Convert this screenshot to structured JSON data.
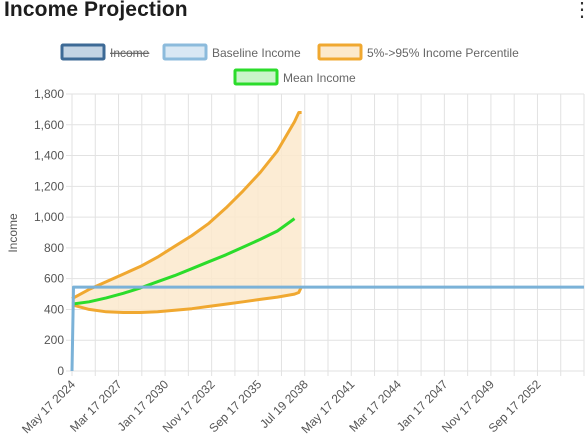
{
  "card": {
    "title": "Income Projection",
    "menu_icon": "more-vertical-icon"
  },
  "chart_data": {
    "type": "line",
    "title": "",
    "ylabel": "Income",
    "xlabel": "",
    "ylim": [
      0,
      1800
    ],
    "y_ticks": [
      0,
      200,
      400,
      600,
      800,
      "1,000",
      "1,200",
      "1,400",
      "1,600",
      "1,800"
    ],
    "x_tick_labels": [
      "May 17 2024",
      "Mar 17 2027",
      "Jan 17 2030",
      "Nov 17 2032",
      "Sep 17 2035",
      "Jul 19 2038",
      "May 17 2041",
      "Mar 17 2044",
      "Jan 17 2047",
      "Nov 17 2049",
      "Sep 17 2052"
    ],
    "x_range": [
      "2024-05-17",
      "2054-04-17"
    ],
    "grid": true,
    "legend_position": "top",
    "legend": [
      {
        "name": "Income",
        "hidden": true,
        "color": "#3d6a96",
        "fill": "#c3d4e4"
      },
      {
        "name": "Baseline Income",
        "hidden": false,
        "color": "#8cbbdc",
        "fill": "#d9e8f4"
      },
      {
        "name": "5%->95% Income Percentile",
        "hidden": false,
        "color": "#f0a830",
        "fill": "#fce9cc"
      },
      {
        "name": "Mean Income",
        "hidden": false,
        "color": "#2bdc2b",
        "fill": "#c9f5c9"
      }
    ],
    "series": [
      {
        "name": "Baseline Income",
        "color": "#7bb2d8",
        "x": [
          "2024-05-17",
          "2024-06-17",
          "2054-04-17"
        ],
        "values": [
          0,
          545,
          545
        ]
      },
      {
        "name": "Mean Income",
        "color": "#2bdc2b",
        "x": [
          "2024-05-17",
          "2025-05-17",
          "2026-05-17",
          "2027-05-17",
          "2028-05-17",
          "2029-05-17",
          "2030-05-17",
          "2031-05-17",
          "2032-05-17",
          "2033-05-17",
          "2034-05-17",
          "2035-05-17",
          "2036-05-17",
          "2037-05-17"
        ],
        "values": [
          435,
          450,
          475,
          505,
          540,
          580,
          620,
          665,
          710,
          755,
          805,
          855,
          910,
          990
        ]
      },
      {
        "name": "5%->95% Income Percentile",
        "color": "#f0a830",
        "x": [
          "2024-05-17",
          "2025-05-17",
          "2026-05-17",
          "2027-05-17",
          "2028-05-17",
          "2029-05-17",
          "2030-05-17",
          "2031-05-17",
          "2032-05-17",
          "2033-05-17",
          "2034-05-17",
          "2035-05-17",
          "2036-05-17",
          "2037-05-17",
          "2037-08-17",
          "2037-10-17"
        ],
        "upper": [
          470,
          530,
          580,
          630,
          680,
          740,
          810,
          880,
          960,
          1060,
          1170,
          1290,
          1430,
          1620,
          1680,
          1680
        ],
        "lower": [
          430,
          400,
          385,
          380,
          380,
          385,
          395,
          405,
          420,
          435,
          450,
          465,
          480,
          500,
          510,
          550
        ]
      }
    ]
  }
}
